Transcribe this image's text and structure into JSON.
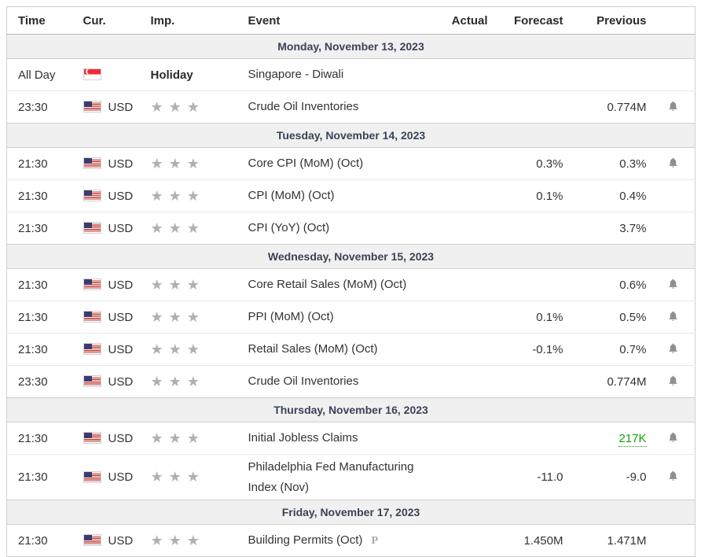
{
  "colors": {
    "positive_green": "#11a011",
    "day_header_bg": "#f0f0f0",
    "day_header_text": "#3a4356",
    "star_gray": "#b0b0b0",
    "bell_gray": "#8f8f8f"
  },
  "header": {
    "time": "Time",
    "cur": "Cur.",
    "imp": "Imp.",
    "event": "Event",
    "actual": "Actual",
    "forecast": "Forecast",
    "previous": "Previous"
  },
  "days": [
    {
      "date": "Monday, November 13, 2023",
      "events": [
        {
          "time": "All Day",
          "flag": "singapore",
          "currency": "",
          "holiday": "Holiday",
          "event": "Singapore - Diwali",
          "actual": "",
          "forecast": "",
          "previous": "",
          "bell": false
        },
        {
          "time": "23:30",
          "flag": "us",
          "currency": "USD",
          "stars": 3,
          "event": "Crude Oil Inventories",
          "actual": "",
          "forecast": "",
          "previous": "0.774M",
          "bell": true
        }
      ]
    },
    {
      "date": "Tuesday, November 14, 2023",
      "events": [
        {
          "time": "21:30",
          "flag": "us",
          "currency": "USD",
          "stars": 3,
          "event": "Core CPI (MoM) (Oct)",
          "actual": "",
          "forecast": "0.3%",
          "previous": "0.3%",
          "bell": true
        },
        {
          "time": "21:30",
          "flag": "us",
          "currency": "USD",
          "stars": 3,
          "event": "CPI (MoM) (Oct)",
          "actual": "",
          "forecast": "0.1%",
          "previous": "0.4%",
          "bell": false
        },
        {
          "time": "21:30",
          "flag": "us",
          "currency": "USD",
          "stars": 3,
          "event": "CPI (YoY) (Oct)",
          "actual": "",
          "forecast": "",
          "previous": "3.7%",
          "bell": false
        }
      ]
    },
    {
      "date": "Wednesday, November 15, 2023",
      "events": [
        {
          "time": "21:30",
          "flag": "us",
          "currency": "USD",
          "stars": 3,
          "event": "Core Retail Sales (MoM) (Oct)",
          "actual": "",
          "forecast": "",
          "previous": "0.6%",
          "bell": true
        },
        {
          "time": "21:30",
          "flag": "us",
          "currency": "USD",
          "stars": 3,
          "event": "PPI (MoM) (Oct)",
          "actual": "",
          "forecast": "0.1%",
          "previous": "0.5%",
          "bell": true
        },
        {
          "time": "21:30",
          "flag": "us",
          "currency": "USD",
          "stars": 3,
          "event": "Retail Sales (MoM) (Oct)",
          "actual": "",
          "forecast": "-0.1%",
          "previous": "0.7%",
          "bell": true
        },
        {
          "time": "23:30",
          "flag": "us",
          "currency": "USD",
          "stars": 3,
          "event": "Crude Oil Inventories",
          "actual": "",
          "forecast": "",
          "previous": "0.774M",
          "bell": true
        }
      ]
    },
    {
      "date": "Thursday, November 16, 2023",
      "events": [
        {
          "time": "21:30",
          "flag": "us",
          "currency": "USD",
          "stars": 3,
          "event": "Initial Jobless Claims",
          "actual": "",
          "forecast": "",
          "previous": "217K",
          "previous_positive": true,
          "bell": true
        },
        {
          "time": "21:30",
          "flag": "us",
          "currency": "USD",
          "stars": 3,
          "event": "Philadelphia Fed Manufacturing Index (Nov)",
          "actual": "",
          "forecast": "-11.0",
          "previous": "-9.0",
          "bell": true
        }
      ]
    },
    {
      "date": "Friday, November 17, 2023",
      "events": [
        {
          "time": "21:30",
          "flag": "us",
          "currency": "USD",
          "stars": 3,
          "event": "Building Permits (Oct)",
          "preliminary": "P",
          "actual": "",
          "forecast": "1.450M",
          "previous": "1.471M",
          "bell": false
        }
      ]
    }
  ]
}
